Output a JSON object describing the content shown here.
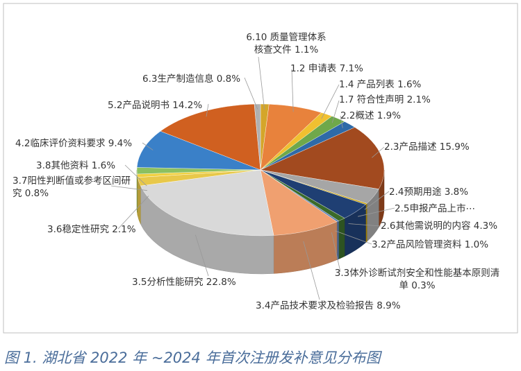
{
  "chart_data": {
    "type": "pie",
    "categories": [
      "6.10 质量管理体系核查文件",
      "1.2 申请表",
      "1.4 产品列表",
      "1.7 符合性声明",
      "2.2概述",
      "2.3产品描述",
      "2.4预期用途",
      "2.5申报产品上市⋯",
      "2.6其他需说明的内容",
      "3.2产品风险管理资料",
      "3.3体外诊断试剂安全和性能基本原则清单",
      "3.4产品技术要求及检验报告",
      "3.5分析性能研究",
      "3.6稳定性研究",
      "3.7阳性判断值或参考区间研究",
      "3.8其他资料",
      "4.2临床评价资料要求",
      "5.2产品说明书",
      "6.3生产制造信息"
    ],
    "values": [
      1.1,
      7.1,
      1.6,
      2.1,
      1.9,
      15.9,
      3.8,
      0.3,
      4.3,
      1.0,
      0.3,
      8.9,
      22.8,
      2.1,
      0.8,
      1.6,
      9.4,
      14.2,
      0.8
    ],
    "value_labels": [
      "1.1%",
      "7.1%",
      "1.6%",
      "2.1%",
      "1.9%",
      "15.9%",
      "3.8%",
      null,
      "4.3%",
      "1.0%",
      "0.3%",
      "8.9%",
      "22.8%",
      "2.1%",
      "0.8%",
      "1.6%",
      "9.4%",
      "14.2%",
      "0.8%"
    ],
    "colors": [
      "#d4a62a",
      "#e8823c",
      "#f0c030",
      "#6fa84a",
      "#2e6aa8",
      "#a24a1f",
      "#a6a6a6",
      "#c8a000",
      "#1f3f73",
      "#3a6a2a",
      "#5a7fb5",
      "#f0a070",
      "#d9d9d9",
      "#e8c84a",
      "#f0d040",
      "#8cc060",
      "#3a80c8",
      "#d06020",
      "#b0b0b0"
    ]
  },
  "caption": "图 1. 湖北省 2022 年 ~2024 年首次注册发补意见分布图"
}
